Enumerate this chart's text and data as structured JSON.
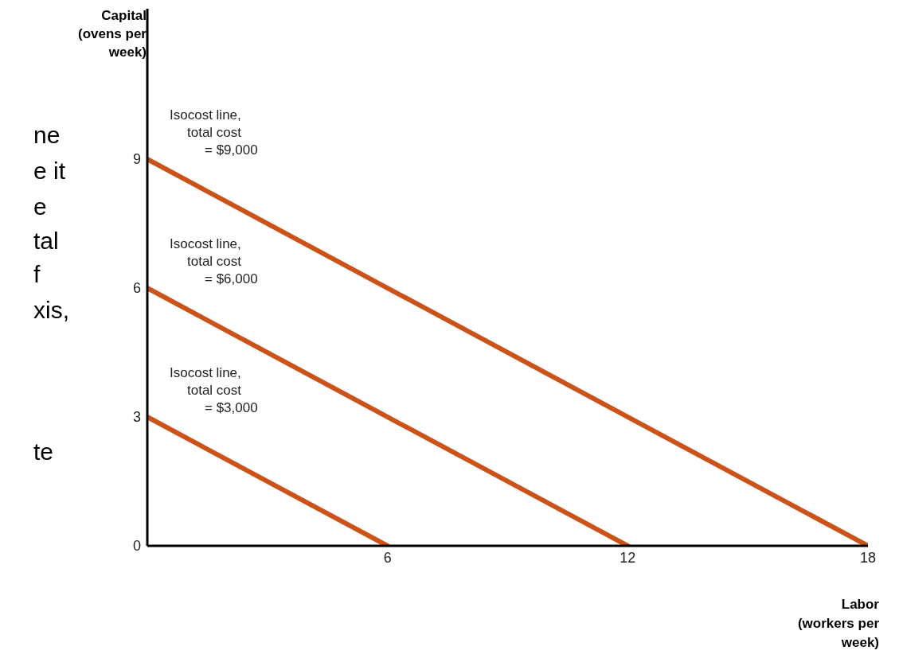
{
  "chart_data": {
    "type": "line",
    "xlabel": "Labor (workers per week)",
    "ylabel": "Capital (ovens per week)",
    "xlim": [
      0,
      18
    ],
    "ylim": [
      0,
      12.5
    ],
    "xticks": [
      6,
      12,
      18
    ],
    "yticks": [
      0,
      3,
      6,
      9
    ],
    "grid": false,
    "legend": false,
    "marker": "none",
    "line_style": "solid",
    "series": [
      {
        "name": "Isocost line, total cost = $3,000",
        "color": "#cc5218",
        "x": [
          0,
          6
        ],
        "values": [
          3,
          0
        ]
      },
      {
        "name": "Isocost line, total cost = $6,000",
        "color": "#cc5218",
        "x": [
          0,
          12
        ],
        "values": [
          6,
          0
        ]
      },
      {
        "name": "Isocost line, total cost = $9,000",
        "color": "#cc5218",
        "x": [
          0,
          18
        ],
        "values": [
          9,
          0
        ]
      }
    ],
    "annotations": [
      "ne",
      "e it",
      "e",
      "tal",
      "f",
      "xis,",
      "te"
    ]
  }
}
